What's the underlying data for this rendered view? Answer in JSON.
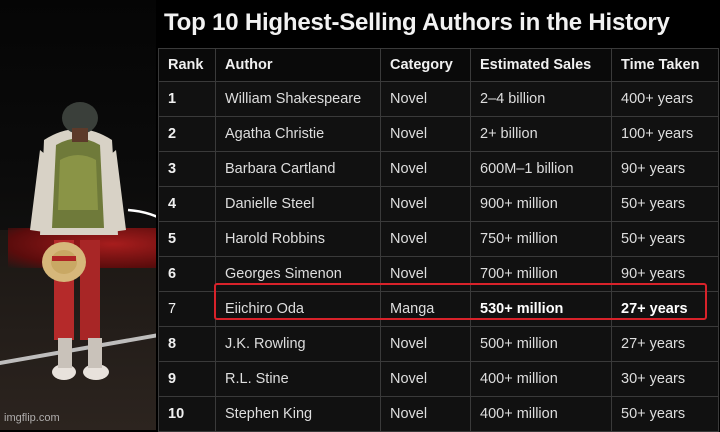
{
  "title": "Top 10 Highest-Selling Authors in the History",
  "watermark": "imgflip.com",
  "table": {
    "headers": [
      "Rank",
      "Author",
      "Category",
      "Estimated Sales",
      "Time Taken"
    ],
    "rows": [
      [
        "1",
        "William Shakespeare",
        "Novel",
        "2–4 billion",
        "400+ years"
      ],
      [
        "2",
        "Agatha Christie",
        "Novel",
        "2+ billion",
        "100+ years"
      ],
      [
        "3",
        "Barbara Cartland",
        "Novel",
        "600M–1 billion",
        "90+ years"
      ],
      [
        "4",
        "Danielle Steel",
        "Novel",
        "900+ million",
        "50+ years"
      ],
      [
        "5",
        "Harold Robbins",
        "Novel",
        "750+ million",
        "50+ years"
      ],
      [
        "6",
        "Georges Simenon",
        "Novel",
        "700+ million",
        "90+ years"
      ],
      [
        "7",
        "Eiichiro Oda",
        "Manga",
        "530+ million",
        "27+ years"
      ],
      [
        "8",
        "J.K. Rowling",
        "Novel",
        "500+ million",
        "27+ years"
      ],
      [
        "9",
        "R.L. Stine",
        "Novel",
        "400+ million",
        "30+ years"
      ],
      [
        "10",
        "Stephen King",
        "Novel",
        "400+ million",
        "50+ years"
      ]
    ],
    "highlighted_rank": "7"
  },
  "colors": {
    "highlight": "#d8222a",
    "background": "#000000"
  }
}
